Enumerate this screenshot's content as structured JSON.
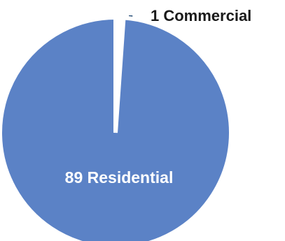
{
  "chart_data": {
    "type": "pie",
    "title": "",
    "legend": "none",
    "slices": [
      {
        "label": "Commercial",
        "value": 1,
        "color": "#002f5f",
        "display": "1 Commercial",
        "label_color": "#1a1a1a"
      },
      {
        "label": "Residential",
        "value": 89,
        "color": "#5b82c6",
        "display": "89 Residential",
        "label_color": "#ffffff"
      }
    ]
  }
}
